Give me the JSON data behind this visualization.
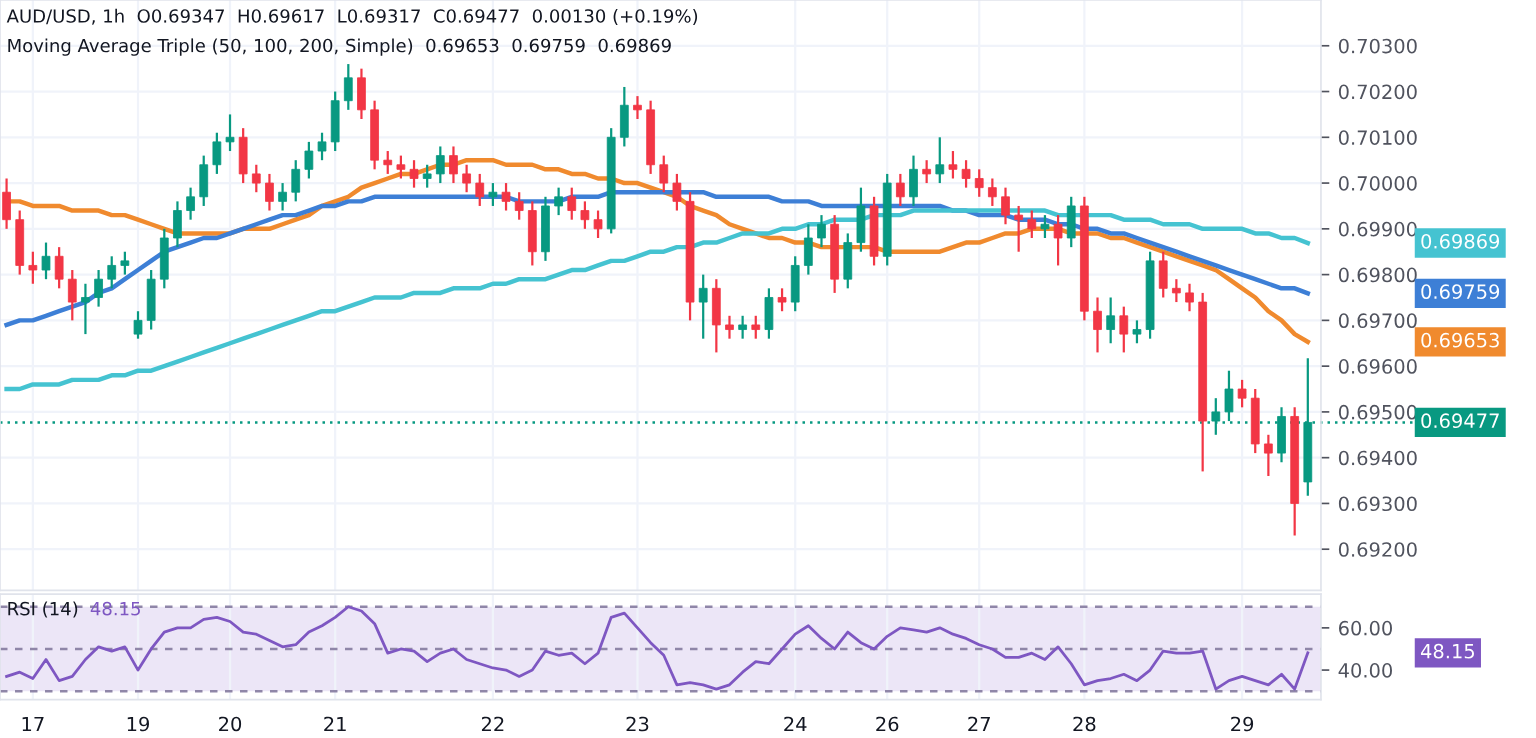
{
  "chart_data": [
    {
      "type": "candlestick",
      "title": "AUD/USD, 1h  O0.69347  H0.69617  L0.69317  C0.69477  0.00130 (+0.19%)",
      "subtitle": "Moving Average Triple (50, 100, 200, Simple)  0.69653  0.69759  0.69869",
      "categories": [
        null,
        null,
        "17",
        null,
        null,
        null,
        null,
        null,
        null,
        null,
        "19",
        null,
        null,
        null,
        null,
        null,
        null,
        "20",
        null,
        null,
        null,
        null,
        null,
        null,
        null,
        "21",
        null,
        null,
        null,
        null,
        null,
        null,
        null,
        null,
        null,
        null,
        null,
        "22",
        null,
        null,
        null,
        null,
        null,
        null,
        null,
        null,
        null,
        null,
        "23",
        null,
        null,
        null,
        null,
        null,
        null,
        null,
        null,
        null,
        null,
        null,
        "24",
        null,
        null,
        null,
        null,
        null,
        null,
        "26",
        null,
        null,
        null,
        null,
        null,
        null,
        "27",
        null,
        null,
        null,
        null,
        null,
        null,
        null,
        "28",
        null,
        null,
        null,
        null,
        null,
        null,
        null,
        null,
        null,
        null,
        null,
        "29",
        null,
        null,
        null,
        null,
        null
      ],
      "ohlc": [
        [
          0.6998,
          0.7001,
          0.699,
          0.6992
        ],
        [
          0.6992,
          0.6994,
          0.698,
          0.6982
        ],
        [
          0.6982,
          0.6985,
          0.6978,
          0.6981
        ],
        [
          0.6981,
          0.6987,
          0.6979,
          0.6984
        ],
        [
          0.6984,
          0.6986,
          0.6977,
          0.6979
        ],
        [
          0.6979,
          0.6981,
          0.697,
          0.6974
        ],
        [
          0.6974,
          0.6978,
          0.6967,
          0.6975
        ],
        [
          0.6975,
          0.6981,
          0.6973,
          0.6979
        ],
        [
          0.6979,
          0.6984,
          0.6977,
          0.6982
        ],
        [
          0.6982,
          0.6985,
          0.698,
          0.6983
        ],
        [
          0.6967,
          0.6972,
          0.6966,
          0.697
        ],
        [
          0.697,
          0.6981,
          0.6968,
          0.6979
        ],
        [
          0.6979,
          0.699,
          0.6977,
          0.6988
        ],
        [
          0.6988,
          0.6996,
          0.6986,
          0.6994
        ],
        [
          0.6994,
          0.6999,
          0.6992,
          0.6997
        ],
        [
          0.6997,
          0.7006,
          0.6995,
          0.7004
        ],
        [
          0.7004,
          0.7011,
          0.7002,
          0.7009
        ],
        [
          0.7009,
          0.7015,
          0.7007,
          0.701
        ],
        [
          0.701,
          0.7012,
          0.7,
          0.7002
        ],
        [
          0.7002,
          0.7004,
          0.6998,
          0.7
        ],
        [
          0.7,
          0.7002,
          0.6994,
          0.6996
        ],
        [
          0.6996,
          0.7,
          0.6994,
          0.6998
        ],
        [
          0.6998,
          0.7005,
          0.6996,
          0.7003
        ],
        [
          0.7003,
          0.7009,
          0.7001,
          0.7007
        ],
        [
          0.7007,
          0.7011,
          0.7005,
          0.7009
        ],
        [
          0.7009,
          0.702,
          0.7007,
          0.7018
        ],
        [
          0.7018,
          0.7026,
          0.7016,
          0.7023
        ],
        [
          0.7023,
          0.7025,
          0.7014,
          0.7016
        ],
        [
          0.7016,
          0.7018,
          0.7003,
          0.7005
        ],
        [
          0.7005,
          0.7007,
          0.7002,
          0.7004
        ],
        [
          0.7004,
          0.7006,
          0.7001,
          0.7003
        ],
        [
          0.7003,
          0.7005,
          0.6999,
          0.7001
        ],
        [
          0.7001,
          0.7004,
          0.6999,
          0.7002
        ],
        [
          0.7002,
          0.7008,
          0.7,
          0.7006
        ],
        [
          0.7006,
          0.7008,
          0.7,
          0.7002
        ],
        [
          0.7002,
          0.7004,
          0.6998,
          0.7
        ],
        [
          0.7,
          0.7002,
          0.6995,
          0.6997
        ],
        [
          0.6997,
          0.7,
          0.6995,
          0.6998
        ],
        [
          0.6998,
          0.7,
          0.6994,
          0.6996
        ],
        [
          0.6996,
          0.6998,
          0.6992,
          0.6994
        ],
        [
          0.6994,
          0.6996,
          0.6982,
          0.6985
        ],
        [
          0.6985,
          0.6997,
          0.6983,
          0.6995
        ],
        [
          0.6995,
          0.6999,
          0.6993,
          0.6997
        ],
        [
          0.6997,
          0.6999,
          0.6992,
          0.6994
        ],
        [
          0.6994,
          0.6996,
          0.699,
          0.6992
        ],
        [
          0.6992,
          0.6994,
          0.6988,
          0.699
        ],
        [
          0.699,
          0.7012,
          0.6989,
          0.701
        ],
        [
          0.701,
          0.7021,
          0.7008,
          0.7017
        ],
        [
          0.7017,
          0.7019,
          0.7014,
          0.7016
        ],
        [
          0.7016,
          0.7018,
          0.7002,
          0.7004
        ],
        [
          0.7004,
          0.7006,
          0.6998,
          0.7
        ],
        [
          0.7,
          0.7002,
          0.6994,
          0.6996
        ],
        [
          0.6996,
          0.6998,
          0.697,
          0.6974
        ],
        [
          0.6974,
          0.698,
          0.6966,
          0.6977
        ],
        [
          0.6977,
          0.6979,
          0.6963,
          0.6969
        ],
        [
          0.6969,
          0.6971,
          0.6966,
          0.6968
        ],
        [
          0.6968,
          0.6971,
          0.6966,
          0.6969
        ],
        [
          0.6969,
          0.6971,
          0.6966,
          0.6968
        ],
        [
          0.6968,
          0.6977,
          0.6966,
          0.6975
        ],
        [
          0.6975,
          0.6977,
          0.6972,
          0.6974
        ],
        [
          0.6974,
          0.6984,
          0.6972,
          0.6982
        ],
        [
          0.6982,
          0.6991,
          0.698,
          0.6988
        ],
        [
          0.6988,
          0.6993,
          0.6986,
          0.6991
        ],
        [
          0.6991,
          0.6993,
          0.6976,
          0.6979
        ],
        [
          0.6979,
          0.6989,
          0.6977,
          0.6987
        ],
        [
          0.6987,
          0.6999,
          0.6985,
          0.6995
        ],
        [
          0.6995,
          0.6997,
          0.6982,
          0.6984
        ],
        [
          0.6984,
          0.7002,
          0.6982,
          0.7
        ],
        [
          0.7,
          0.7002,
          0.6995,
          0.6997
        ],
        [
          0.6997,
          0.7006,
          0.6995,
          0.7003
        ],
        [
          0.7003,
          0.7005,
          0.7,
          0.7002
        ],
        [
          0.7002,
          0.701,
          0.7,
          0.7004
        ],
        [
          0.7004,
          0.7007,
          0.7001,
          0.7003
        ],
        [
          0.7003,
          0.7005,
          0.6999,
          0.7001
        ],
        [
          0.7001,
          0.7003,
          0.6997,
          0.6999
        ],
        [
          0.6999,
          0.7001,
          0.6995,
          0.6997
        ],
        [
          0.6997,
          0.6999,
          0.6991,
          0.6993
        ],
        [
          0.6993,
          0.6995,
          0.6985,
          0.6992
        ],
        [
          0.6992,
          0.6994,
          0.6988,
          0.699
        ],
        [
          0.699,
          0.6993,
          0.6988,
          0.6991
        ],
        [
          0.6991,
          0.6993,
          0.6982,
          0.6988
        ],
        [
          0.6988,
          0.6997,
          0.6986,
          0.6995
        ],
        [
          0.6995,
          0.6997,
          0.697,
          0.6972
        ],
        [
          0.6972,
          0.6975,
          0.6963,
          0.6968
        ],
        [
          0.6968,
          0.6975,
          0.6965,
          0.6971
        ],
        [
          0.6971,
          0.6973,
          0.6963,
          0.6967
        ],
        [
          0.6967,
          0.697,
          0.6965,
          0.6968
        ],
        [
          0.6968,
          0.6985,
          0.6966,
          0.6983
        ],
        [
          0.6983,
          0.6985,
          0.6975,
          0.6977
        ],
        [
          0.6977,
          0.6979,
          0.6974,
          0.6976
        ],
        [
          0.6976,
          0.6978,
          0.6972,
          0.6974
        ],
        [
          0.6974,
          0.6976,
          0.6937,
          0.6948
        ],
        [
          0.6948,
          0.6953,
          0.6945,
          0.695
        ],
        [
          0.695,
          0.6959,
          0.6948,
          0.6955
        ],
        [
          0.6955,
          0.6957,
          0.6951,
          0.6953
        ],
        [
          0.6953,
          0.6955,
          0.6941,
          0.6943
        ],
        [
          0.6943,
          0.6945,
          0.6936,
          0.6941
        ],
        [
          0.6941,
          0.6951,
          0.6939,
          0.6949
        ],
        [
          0.6949,
          0.6951,
          0.6923,
          0.693
        ],
        [
          0.69347,
          0.69617,
          0.69317,
          0.69477
        ]
      ],
      "colors": [
        "#f23645",
        "#f23645",
        "#f23645",
        "#089981",
        "#f23645",
        "#f23645",
        "#089981",
        "#089981",
        "#089981",
        "#089981",
        "#089981",
        "#089981",
        "#089981",
        "#089981",
        "#089981",
        "#089981",
        "#089981",
        "#089981",
        "#f23645",
        "#f23645",
        "#f23645",
        "#089981",
        "#089981",
        "#089981",
        "#089981",
        "#089981",
        "#089981",
        "#f23645",
        "#f23645",
        "#f23645",
        "#f23645",
        "#f23645",
        "#089981",
        "#089981",
        "#f23645",
        "#f23645",
        "#f23645",
        "#089981",
        "#f23645",
        "#f23645",
        "#f23645",
        "#089981",
        "#089981",
        "#f23645",
        "#f23645",
        "#f23645",
        "#089981",
        "#089981",
        "#f23645",
        "#f23645",
        "#f23645",
        "#f23645",
        "#f23645",
        "#089981",
        "#f23645",
        "#f23645",
        "#089981",
        "#f23645",
        "#089981",
        "#f23645",
        "#089981",
        "#089981",
        "#089981",
        "#f23645",
        "#089981",
        "#089981",
        "#f23645",
        "#089981",
        "#f23645",
        "#089981",
        "#f23645",
        "#089981",
        "#f23645",
        "#f23645",
        "#f23645",
        "#f23645",
        "#f23645",
        "#f23645",
        "#f23645",
        "#089981",
        "#f23645",
        "#089981",
        "#f23645",
        "#f23645",
        "#089981",
        "#f23645",
        "#089981",
        "#089981",
        "#f23645",
        "#f23645",
        "#f23645",
        "#f23645",
        "#089981",
        "#089981",
        "#f23645",
        "#f23645",
        "#f23645",
        "#089981",
        "#f23645",
        "#089981"
      ],
      "series": [
        {
          "type": "line",
          "color": "#f08a2e",
          "values": [
            0.6996,
            0.6996,
            0.6995,
            0.6995,
            0.6995,
            0.6994,
            0.6994,
            0.6994,
            0.6993,
            0.6993,
            0.6992,
            0.6991,
            0.699,
            0.6989,
            0.6989,
            0.6989,
            0.6989,
            0.6989,
            0.699,
            0.699,
            0.699,
            0.6991,
            0.6992,
            0.6993,
            0.6995,
            0.6996,
            0.6997,
            0.6999,
            0.7,
            0.7001,
            0.7002,
            0.7002,
            0.7003,
            0.7004,
            0.7004,
            0.7005,
            0.7005,
            0.7005,
            0.7004,
            0.7004,
            0.7004,
            0.7003,
            0.7003,
            0.7002,
            0.7002,
            0.7001,
            0.7001,
            0.7,
            0.7,
            0.6999,
            0.6998,
            0.6997,
            0.6995,
            0.6994,
            0.6993,
            0.6991,
            0.699,
            0.6989,
            0.6988,
            0.6988,
            0.6987,
            0.6987,
            0.6986,
            0.6986,
            0.6986,
            0.6986,
            0.6986,
            0.6985,
            0.6985,
            0.6985,
            0.6985,
            0.6985,
            0.6986,
            0.6987,
            0.6987,
            0.6988,
            0.6989,
            0.6989,
            0.699,
            0.699,
            0.699,
            0.6989,
            0.6989,
            0.6989,
            0.6988,
            0.6988,
            0.6987,
            0.6986,
            0.6985,
            0.6984,
            0.6983,
            0.6982,
            0.6981,
            0.6979,
            0.6977,
            0.6975,
            0.6972,
            0.697,
            0.6967,
            0.69653
          ]
        },
        {
          "type": "line",
          "color": "#3d7fd6",
          "values": [
            0.6969,
            0.697,
            0.697,
            0.6971,
            0.6972,
            0.6973,
            0.6974,
            0.6976,
            0.6977,
            0.6979,
            0.6981,
            0.6983,
            0.6985,
            0.6986,
            0.6987,
            0.6988,
            0.6988,
            0.6989,
            0.699,
            0.6991,
            0.6992,
            0.6993,
            0.6993,
            0.6994,
            0.6995,
            0.6995,
            0.6996,
            0.6996,
            0.6997,
            0.6997,
            0.6997,
            0.6997,
            0.6997,
            0.6997,
            0.6997,
            0.6997,
            0.6997,
            0.6997,
            0.6997,
            0.6996,
            0.6996,
            0.6996,
            0.6996,
            0.6997,
            0.6997,
            0.6997,
            0.6998,
            0.6998,
            0.6998,
            0.6998,
            0.6998,
            0.6998,
            0.6998,
            0.6998,
            0.6997,
            0.6997,
            0.6997,
            0.6997,
            0.6997,
            0.6996,
            0.6996,
            0.6996,
            0.6995,
            0.6995,
            0.6995,
            0.6995,
            0.6995,
            0.6995,
            0.6995,
            0.6995,
            0.6995,
            0.6995,
            0.6994,
            0.6994,
            0.6993,
            0.6993,
            0.6993,
            0.6992,
            0.6992,
            0.6992,
            0.6991,
            0.6991,
            0.699,
            0.699,
            0.6989,
            0.6989,
            0.6988,
            0.6987,
            0.6986,
            0.6985,
            0.6984,
            0.6983,
            0.6982,
            0.6981,
            0.698,
            0.6979,
            0.6978,
            0.6977,
            0.6977,
            0.69759
          ]
        },
        {
          "type": "line",
          "color": "#45c3d1",
          "values": [
            0.6955,
            0.6955,
            0.6956,
            0.6956,
            0.6956,
            0.6957,
            0.6957,
            0.6957,
            0.6958,
            0.6958,
            0.6959,
            0.6959,
            0.696,
            0.6961,
            0.6962,
            0.6963,
            0.6964,
            0.6965,
            0.6966,
            0.6967,
            0.6968,
            0.6969,
            0.697,
            0.6971,
            0.6972,
            0.6972,
            0.6973,
            0.6974,
            0.6975,
            0.6975,
            0.6975,
            0.6976,
            0.6976,
            0.6976,
            0.6977,
            0.6977,
            0.6977,
            0.6978,
            0.6978,
            0.6979,
            0.6979,
            0.6979,
            0.698,
            0.6981,
            0.6981,
            0.6982,
            0.6983,
            0.6983,
            0.6984,
            0.6985,
            0.6985,
            0.6986,
            0.6986,
            0.6987,
            0.6987,
            0.6988,
            0.6989,
            0.6989,
            0.6989,
            0.699,
            0.699,
            0.6991,
            0.6991,
            0.6992,
            0.6992,
            0.6992,
            0.6993,
            0.6993,
            0.6993,
            0.6994,
            0.6994,
            0.6994,
            0.6994,
            0.6994,
            0.6994,
            0.6994,
            0.6994,
            0.6994,
            0.6994,
            0.6994,
            0.6993,
            0.6993,
            0.6993,
            0.6993,
            0.6993,
            0.6992,
            0.6992,
            0.6992,
            0.6991,
            0.6991,
            0.6991,
            0.699,
            0.699,
            0.699,
            0.699,
            0.6989,
            0.6989,
            0.6988,
            0.6988,
            0.69869
          ]
        }
      ],
      "annotations": [
        "0.69653",
        "0.69759",
        "0.69869"
      ],
      "ref_lines": [
        {
          "axis": "y",
          "value": 0.69477,
          "label": "0.69477",
          "color": "#089981",
          "line_style": "dotted"
        }
      ],
      "ylim": [
        0.6911,
        0.704
      ],
      "yticks": [
        {
          "value": 0.692,
          "label": "0.69200"
        },
        {
          "value": 0.693,
          "label": "0.69300"
        },
        {
          "value": 0.694,
          "label": "0.69400"
        },
        {
          "value": 0.695,
          "label": "0.69500"
        },
        {
          "value": 0.696,
          "label": "0.69600"
        },
        {
          "value": 0.697,
          "label": "0.69700"
        },
        {
          "value": 0.698,
          "label": "0.69800"
        },
        {
          "value": 0.699,
          "label": "0.69900"
        },
        {
          "value": 0.7,
          "label": "0.70000"
        },
        {
          "value": 0.701,
          "label": "0.70100"
        },
        {
          "value": 0.702,
          "label": "0.70200"
        },
        {
          "value": 0.703,
          "label": "0.70300"
        }
      ],
      "grid": true,
      "tick_labels": "y"
    },
    {
      "type": "line",
      "title": "RSI (14)",
      "subtitle": "48.15",
      "categories": [
        null,
        null,
        "17",
        null,
        null,
        null,
        null,
        null,
        null,
        null,
        "19",
        null,
        null,
        null,
        null,
        null,
        null,
        "20",
        null,
        null,
        null,
        null,
        null,
        null,
        null,
        "21",
        null,
        null,
        null,
        null,
        null,
        null,
        null,
        null,
        null,
        null,
        null,
        "22",
        null,
        null,
        null,
        null,
        null,
        null,
        null,
        null,
        null,
        null,
        "23",
        null,
        null,
        null,
        null,
        null,
        null,
        null,
        null,
        null,
        null,
        null,
        "24",
        null,
        null,
        null,
        null,
        null,
        null,
        "26",
        null,
        null,
        null,
        null,
        null,
        null,
        "27",
        null,
        null,
        null,
        null,
        null,
        null,
        null,
        "28",
        null,
        null,
        null,
        null,
        null,
        null,
        null,
        null,
        null,
        null,
        null,
        "29",
        null,
        null,
        null,
        null,
        null
      ],
      "series": [
        {
          "color": "#7e57c2",
          "values": [
            37,
            39,
            36,
            45,
            35,
            37,
            45,
            51,
            49,
            51,
            40,
            50,
            58,
            60,
            60,
            64,
            65,
            63,
            58,
            57,
            54,
            51,
            52,
            58,
            61,
            65,
            70,
            68,
            62,
            48,
            50,
            49,
            44,
            48,
            50,
            45,
            43,
            41,
            40,
            37,
            40,
            49,
            47,
            48,
            43,
            48,
            65,
            67,
            60,
            53,
            47,
            33,
            34,
            33,
            31,
            33,
            39,
            44,
            43,
            50,
            57,
            61,
            55,
            50,
            58,
            53,
            50,
            56,
            60,
            59,
            58,
            60,
            57,
            55,
            52,
            50,
            46,
            46,
            48,
            45,
            51,
            43,
            33,
            35,
            36,
            38,
            35,
            40,
            49,
            48,
            48,
            49,
            31,
            35,
            37,
            35,
            33,
            38,
            31,
            48.15
          ]
        }
      ],
      "annotations": [
        "48.15"
      ],
      "ref_lines": [
        {
          "axis": "y",
          "value": 70,
          "color": "#8f86a8",
          "line_style": "dashed"
        },
        {
          "axis": "y",
          "value": 50,
          "color": "#8f86a8",
          "line_style": "dashed"
        },
        {
          "axis": "y",
          "value": 30,
          "color": "#8f86a8",
          "line_style": "dashed"
        }
      ],
      "bands": [
        {
          "axis": "y",
          "from": 30,
          "to": 70,
          "color": "#ece6f7"
        }
      ],
      "ylim": [
        26,
        76
      ],
      "yticks": [
        {
          "value": 60,
          "label": "60.00"
        },
        {
          "value": 40,
          "label": "40.00"
        }
      ],
      "grid": "x"
    }
  ]
}
